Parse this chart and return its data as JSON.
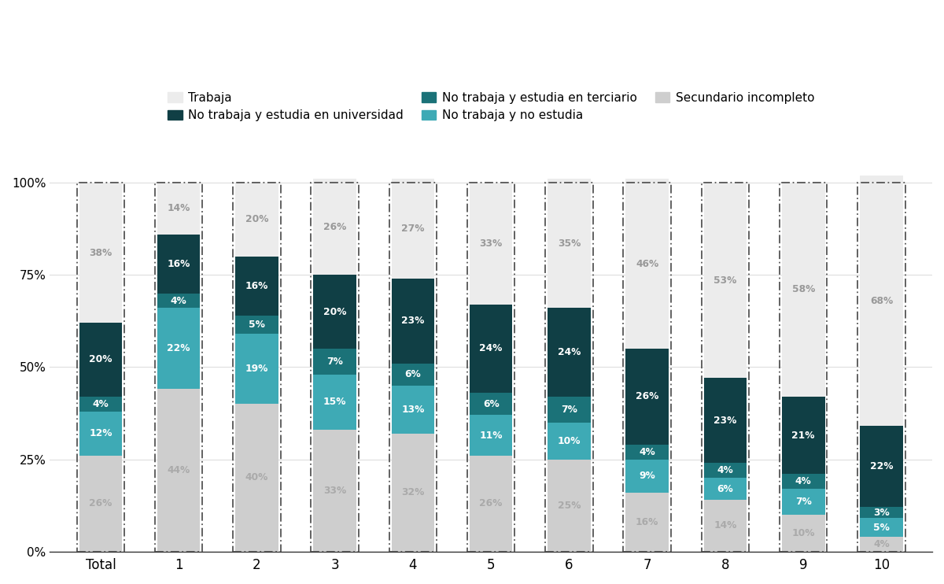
{
  "categories": [
    "Total",
    "1",
    "2",
    "3",
    "4",
    "5",
    "6",
    "7",
    "8",
    "9",
    "10"
  ],
  "series": {
    "Secundario incompleto": [
      26,
      44,
      40,
      33,
      32,
      26,
      25,
      16,
      14,
      10,
      4
    ],
    "No trabaja y no estudia": [
      12,
      22,
      19,
      15,
      13,
      11,
      10,
      9,
      6,
      7,
      5
    ],
    "No trabaja y estudia en terciario": [
      4,
      4,
      5,
      7,
      6,
      6,
      7,
      4,
      4,
      4,
      3
    ],
    "No trabaja y estudia en universidad": [
      20,
      16,
      16,
      20,
      23,
      24,
      24,
      26,
      23,
      21,
      22
    ],
    "Trabaja": [
      38,
      14,
      20,
      26,
      27,
      33,
      35,
      46,
      53,
      58,
      68
    ]
  },
  "colors": {
    "Secundario incompleto": "#cecece",
    "No trabaja y no estudia": "#3eaab5",
    "No trabaja y estudia en terciario": "#1b7278",
    "No trabaja y estudia en universidad": "#103f45",
    "Trabaja": "#ececec"
  },
  "label_colors": {
    "Secundario incompleto": "#aaaaaa",
    "No trabaja y no estudia": "#ffffff",
    "No trabaja y estudia en terciario": "#ffffff",
    "No trabaja y estudia en universidad": "#ffffff",
    "Trabaja": "#999999"
  },
  "legend_order": [
    "Trabaja",
    "No trabaja y estudia en universidad",
    "No trabaja y estudia en terciario",
    "No trabaja y no estudia",
    "Secundario incompleto"
  ],
  "figsize": [
    12.0,
    7.42
  ],
  "dpi": 100,
  "bar_width": 0.55
}
